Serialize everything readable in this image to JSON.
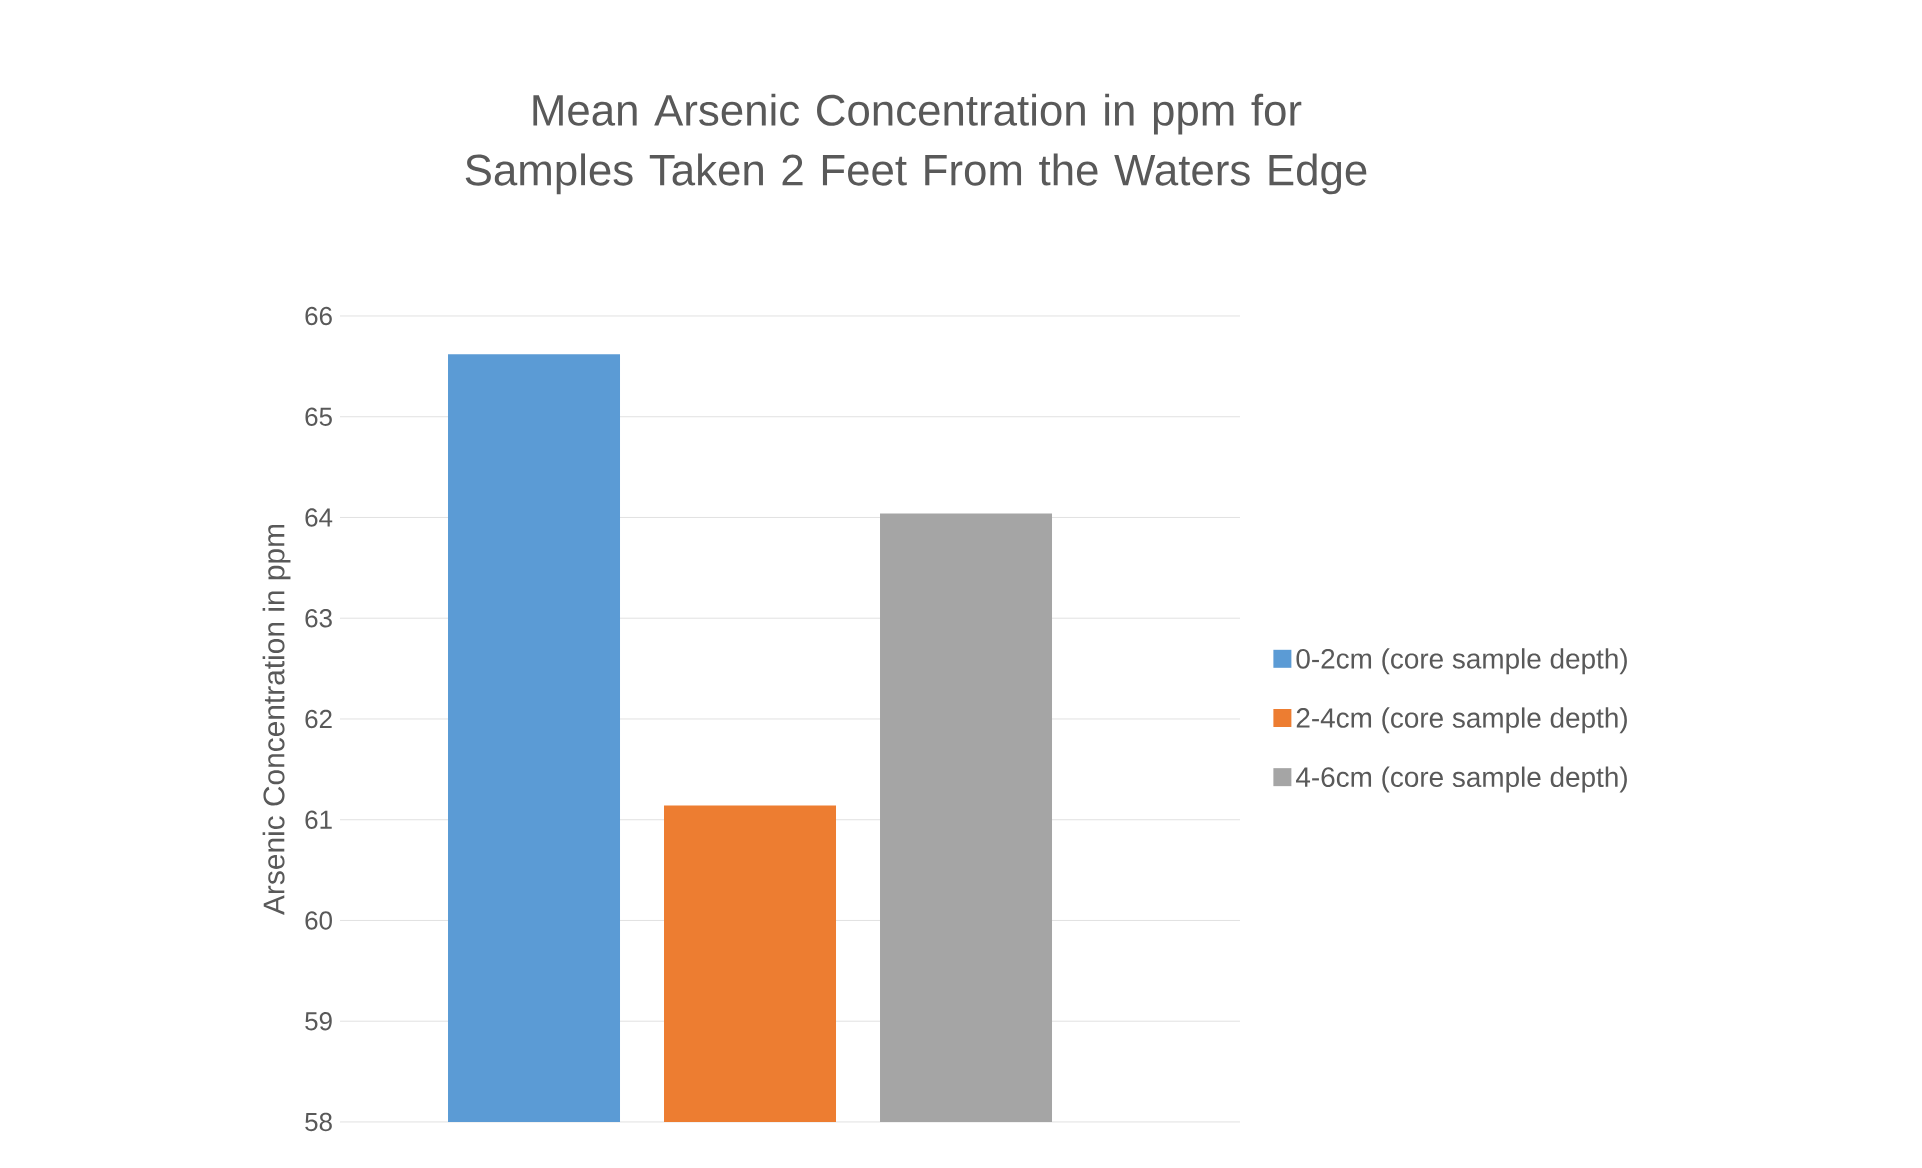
{
  "chart_data": {
    "type": "bar",
    "title": "Mean Arsenic Concentration in ppm for Samples Taken 2 Feet From the Waters Edge",
    "ylabel": "Arsenic Concentration in ppm",
    "categories": [
      null
    ],
    "series": [
      {
        "name": "0-2cm (core sample depth)",
        "color": "#5b9bd5",
        "values": [
          65.62
        ]
      },
      {
        "name": "2-4cm (core sample depth)",
        "color": "#ed7d31",
        "values": [
          61.14
        ]
      },
      {
        "name": "4-6cm (core sample depth)",
        "color": "#a5a5a5",
        "values": [
          64.04
        ]
      }
    ],
    "ylim": [
      58,
      66
    ],
    "yticks": [
      58,
      59,
      60,
      61,
      62,
      63,
      64,
      65,
      66
    ],
    "grid": "y",
    "legend": "right"
  }
}
